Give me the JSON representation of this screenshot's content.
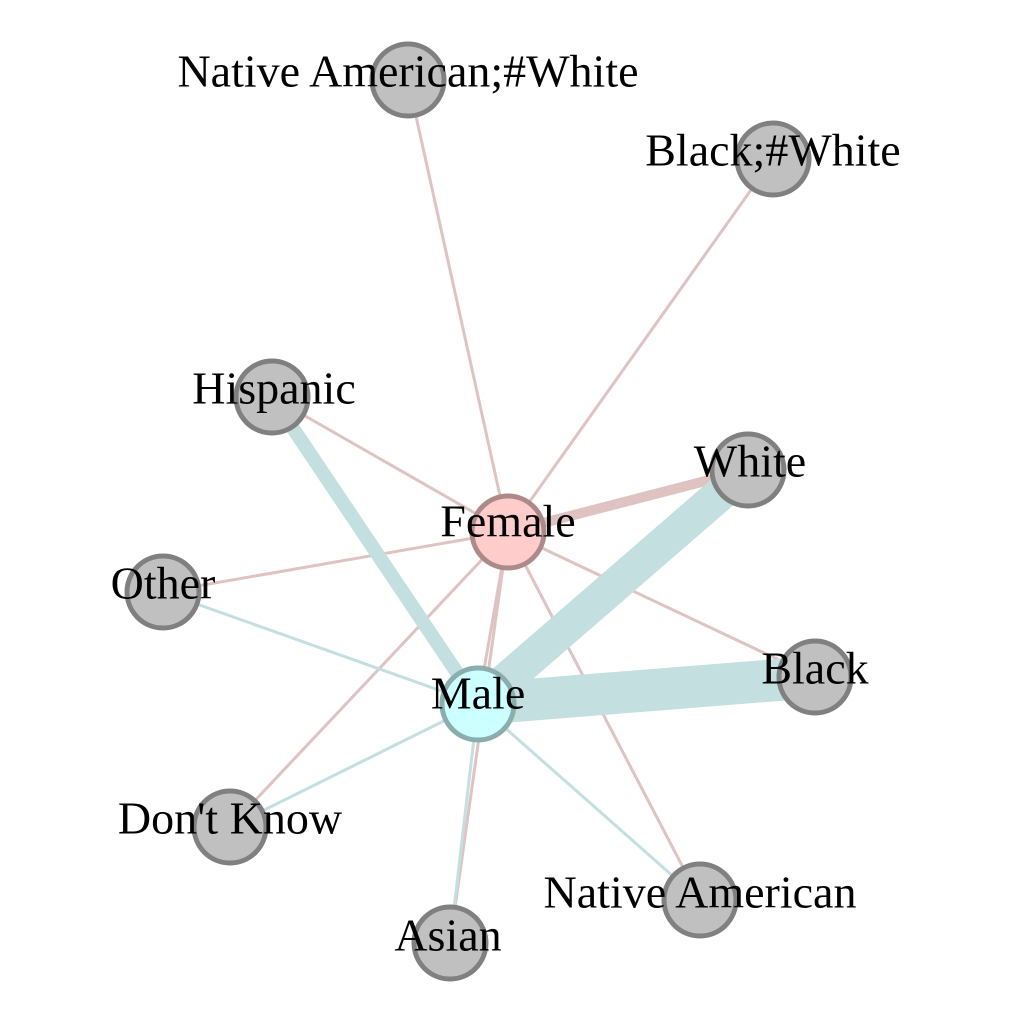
{
  "colors": {
    "female_edge": "#dfc3c3",
    "male_edge": "#c3dfdf",
    "other_node_fill": "#c0c0c0",
    "other_node_stroke": "#808080",
    "female_node_fill": "#ffcccc",
    "female_node_stroke": "#ad8a8a",
    "male_node_fill": "#ccffff",
    "male_node_stroke": "#8aadad"
  },
  "nodes": [
    {
      "id": "female",
      "label": "Female",
      "kind": "female"
    },
    {
      "id": "male",
      "label": "Male",
      "kind": "male"
    },
    {
      "id": "nat_white",
      "label": "Native American;#White",
      "kind": "other"
    },
    {
      "id": "black_white",
      "label": "Black;#White",
      "kind": "other"
    },
    {
      "id": "hispanic",
      "label": "Hispanic",
      "kind": "other"
    },
    {
      "id": "white",
      "label": "White",
      "kind": "other"
    },
    {
      "id": "other",
      "label": "Other",
      "kind": "other"
    },
    {
      "id": "black",
      "label": "Black",
      "kind": "other"
    },
    {
      "id": "dont_know",
      "label": "Don't Know",
      "kind": "other"
    },
    {
      "id": "asian",
      "label": "Asian",
      "kind": "other"
    },
    {
      "id": "native_american",
      "label": "Native American",
      "kind": "other"
    }
  ],
  "edges": [
    {
      "source": "female",
      "target": "nat_white",
      "weight": 1
    },
    {
      "source": "female",
      "target": "black_white",
      "weight": 1
    },
    {
      "source": "female",
      "target": "hispanic",
      "weight": 1
    },
    {
      "source": "female",
      "target": "white",
      "weight": 2
    },
    {
      "source": "female",
      "target": "other",
      "weight": 1
    },
    {
      "source": "female",
      "target": "black",
      "weight": 1
    },
    {
      "source": "female",
      "target": "dont_know",
      "weight": 1
    },
    {
      "source": "female",
      "target": "asian",
      "weight": 1
    },
    {
      "source": "female",
      "target": "native_american",
      "weight": 1
    },
    {
      "source": "female",
      "target": "male",
      "weight": 1
    },
    {
      "source": "male",
      "target": "hispanic",
      "weight": 3
    },
    {
      "source": "male",
      "target": "white",
      "weight": 8
    },
    {
      "source": "male",
      "target": "black",
      "weight": 10
    },
    {
      "source": "male",
      "target": "other",
      "weight": 1
    },
    {
      "source": "male",
      "target": "dont_know",
      "weight": 1
    },
    {
      "source": "male",
      "target": "asian",
      "weight": 1
    },
    {
      "source": "male",
      "target": "native_american",
      "weight": 1
    }
  ]
}
